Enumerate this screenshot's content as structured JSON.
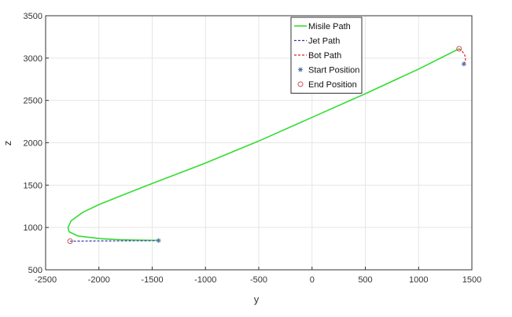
{
  "chart_data": {
    "type": "line",
    "title": "",
    "xlabel": "y",
    "ylabel": "z",
    "xlim": [
      -2500,
      1500
    ],
    "ylim": [
      500,
      3500
    ],
    "xticks": [
      -2500,
      -2000,
      -1500,
      -1000,
      -500,
      0,
      500,
      1000,
      1500
    ],
    "yticks": [
      500,
      1000,
      1500,
      2000,
      2500,
      3000,
      3500
    ],
    "xtick_labels": [
      "-2500",
      "-2000",
      "-1500",
      "-1000",
      "-500",
      "0",
      "500",
      "1000",
      "1500"
    ],
    "ytick_labels": [
      "500",
      "1000",
      "1500",
      "2000",
      "2500",
      "3000",
      "3500"
    ],
    "grid": true,
    "legend_position": "top-right",
    "colors": {
      "missile": "#33dd33",
      "jet": "#3333aa",
      "bot": "#dd2222",
      "start_marker": "#5577aa",
      "end_marker": "#cc5555",
      "grid": "#e6e6e6",
      "axis": "#333333"
    },
    "series": [
      {
        "name": "Misile Path",
        "style": "solid",
        "x": [
          1380,
          1000,
          500,
          0,
          -500,
          -1000,
          -1500,
          -1800,
          -2000,
          -2150,
          -2260,
          -2290,
          -2280,
          -2200,
          -2000,
          -1800,
          -1600,
          -1450
        ],
        "y": [
          3110,
          2870,
          2580,
          2300,
          2020,
          1760,
          1520,
          1370,
          1270,
          1180,
          1080,
          1000,
          950,
          900,
          870,
          855,
          850,
          848
        ]
      },
      {
        "name": "Jet Path",
        "style": "dashed",
        "x": [
          -1440,
          -1700,
          -2000,
          -2270
        ],
        "y": [
          845,
          843,
          841,
          838
        ]
      },
      {
        "name": "Bot Path",
        "style": "dashed",
        "x": [
          1380,
          1410,
          1435,
          1440,
          1425
        ],
        "y": [
          3110,
          3080,
          3030,
          2980,
          2930
        ]
      }
    ],
    "markers": [
      {
        "name": "Start Position",
        "symbol": "asterisk",
        "points": [
          {
            "x": -1440,
            "y": 845
          },
          {
            "x": 1425,
            "y": 2930
          }
        ]
      },
      {
        "name": "End Position",
        "symbol": "circle",
        "points": [
          {
            "x": -2270,
            "y": 838
          },
          {
            "x": 1380,
            "y": 3110
          }
        ]
      }
    ],
    "legend": [
      "Misile Path",
      "Jet Path",
      "Bot Path",
      "Start Position",
      "End Position"
    ]
  }
}
